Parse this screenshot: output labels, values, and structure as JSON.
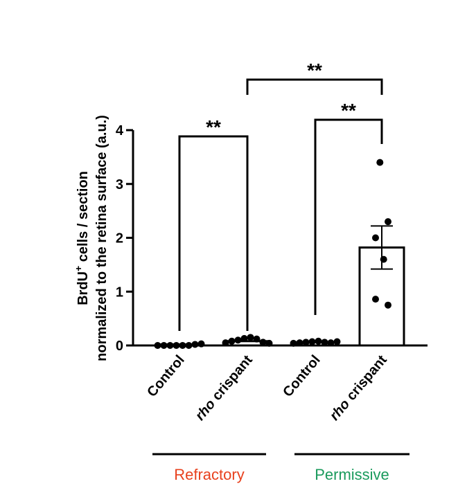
{
  "chart_data": {
    "type": "bar",
    "ylabel_line1": "BrdU",
    "ylabel_sup": "+",
    "ylabel_line1_rest": " cells / section",
    "ylabel_line2": "normalized to the retina surface (a.u.)",
    "ylim": [
      0,
      4
    ],
    "yticks": [
      "0",
      "1",
      "2",
      "3",
      "4"
    ],
    "categories": [
      {
        "prefix": "",
        "italic": "",
        "text": "Control"
      },
      {
        "prefix": "",
        "italic": "rho",
        "text": " crispant"
      },
      {
        "prefix": "",
        "italic": "",
        "text": "Control"
      },
      {
        "prefix": "",
        "italic": "rho",
        "text": " crispant"
      }
    ],
    "means": [
      0.02,
      0.08,
      0.06,
      1.82
    ],
    "sem": [
      0.0,
      0.0,
      0.0,
      0.4
    ],
    "points": [
      [
        0.0,
        0.0,
        0.0,
        0.0,
        0.0,
        0.0,
        0.02,
        0.03
      ],
      [
        0.05,
        0.08,
        0.1,
        0.13,
        0.15,
        0.12,
        0.06,
        0.04
      ],
      [
        0.04,
        0.05,
        0.06,
        0.07,
        0.08,
        0.06,
        0.05,
        0.07
      ],
      [
        3.4,
        2.3,
        2.0,
        1.6,
        0.86,
        0.75
      ]
    ],
    "significance": [
      {
        "from": 0,
        "to": 1,
        "label": "**"
      },
      {
        "from": 2,
        "to": 3,
        "label": "**"
      },
      {
        "from": 1,
        "to": 3,
        "label": "**"
      }
    ],
    "groups": [
      {
        "label": "Refractory",
        "color": "#e8411e",
        "categories": [
          0,
          1
        ]
      },
      {
        "label": "Permissive",
        "color": "#1a9a5c",
        "categories": [
          2,
          3
        ]
      }
    ]
  }
}
